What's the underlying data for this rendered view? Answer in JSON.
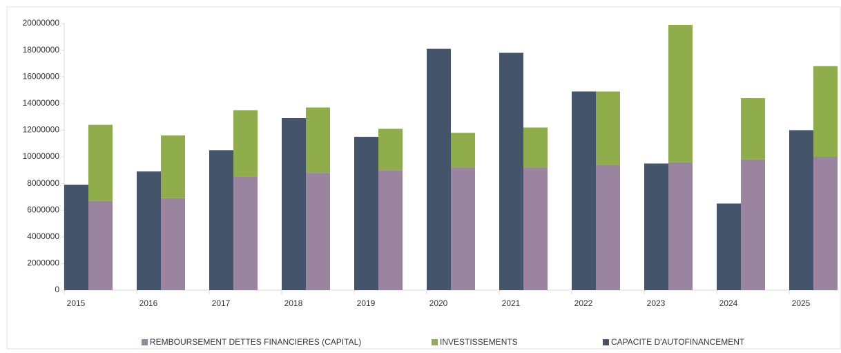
{
  "chart_data": {
    "type": "bar",
    "categories": [
      "2015",
      "2016",
      "2017",
      "2018",
      "2019",
      "2020",
      "2021",
      "2022",
      "2023",
      "2024",
      "2025"
    ],
    "series": [
      {
        "name": "REMBOURSEMENT DETTES FINANCIERES (CAPITAL)",
        "color": "#9a84a0",
        "stack": 1,
        "values": [
          6700000,
          6900000,
          8500000,
          8800000,
          9000000,
          9200000,
          9200000,
          9400000,
          9600000,
          9800000,
          10000000
        ]
      },
      {
        "name": "INVESTISSEMENTS",
        "color": "#8fad4a",
        "stack": 1,
        "values": [
          5700000,
          4700000,
          5000000,
          4900000,
          3100000,
          2600000,
          3000000,
          5500000,
          10300000,
          4600000,
          6800000
        ]
      },
      {
        "name": "CAPACITE D'AUTOFINANCEMENT",
        "color": "#44546a",
        "stack": 0,
        "values": [
          7900000,
          8900000,
          10500000,
          12900000,
          11500000,
          18100000,
          17800000,
          14900000,
          9500000,
          6500000,
          12000000
        ]
      }
    ],
    "ylim": [
      0,
      20000000
    ],
    "yticks": [
      0,
      2000000,
      4000000,
      6000000,
      8000000,
      10000000,
      12000000,
      14000000,
      16000000,
      18000000,
      20000000
    ],
    "legend": "bottom"
  }
}
